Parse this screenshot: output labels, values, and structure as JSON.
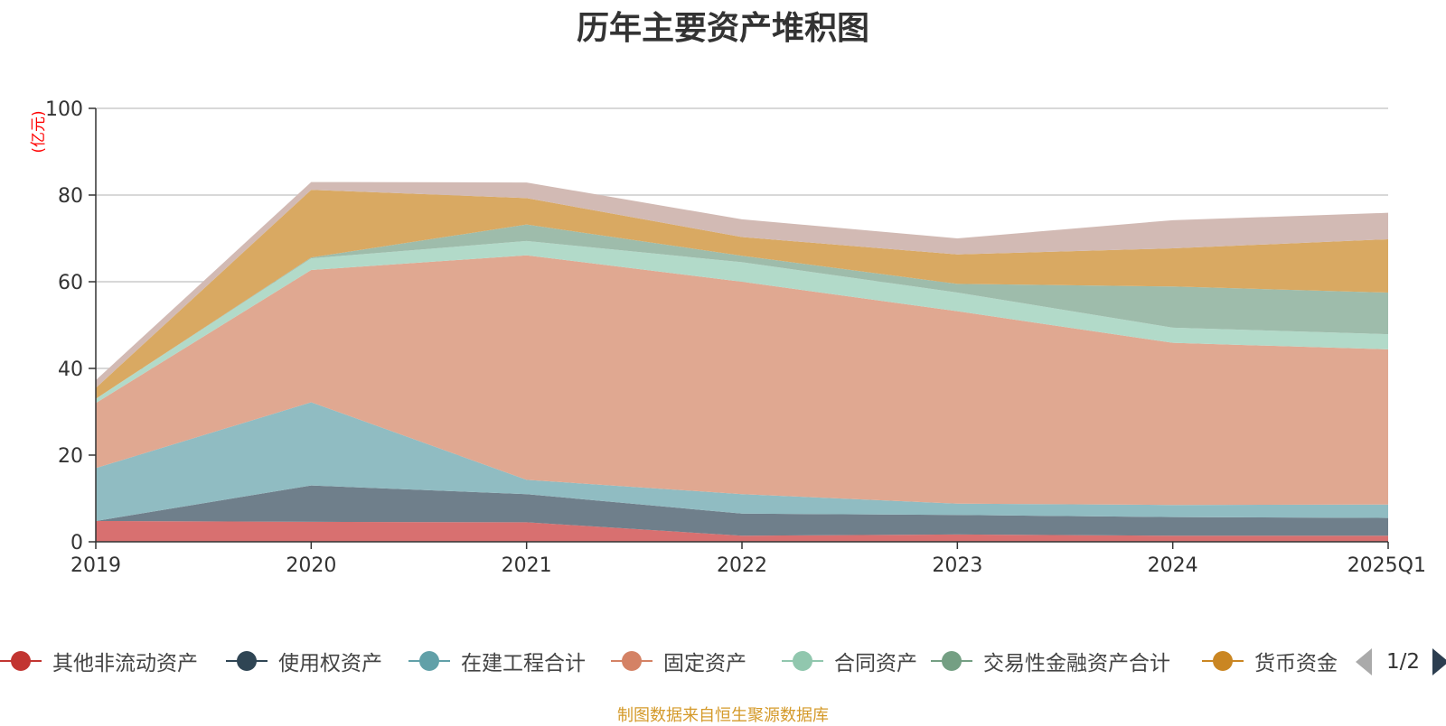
{
  "title": "历年主要资产堆积图",
  "source_note": "制图数据来自恒生聚源数据库",
  "pager": {
    "text": "1/2"
  },
  "chart_data": {
    "type": "area",
    "stacked": true,
    "title": "历年主要资产堆积图",
    "ylabel": "(亿元)",
    "ylim": [
      0,
      100
    ],
    "yticks": [
      0,
      20,
      40,
      60,
      80,
      100
    ],
    "grid": true,
    "legend_position": "bottom",
    "categories": [
      "2019",
      "2020",
      "2021",
      "2022",
      "2023",
      "2024",
      "2025Q1"
    ],
    "series": [
      {
        "name": "其他非流动资产",
        "color": "#c23531",
        "fill": "#d87070",
        "values": [
          4.8,
          4.6,
          4.5,
          1.4,
          1.7,
          1.4,
          1.4
        ]
      },
      {
        "name": "使用权资产",
        "color": "#2f4554",
        "fill": "#6f7f8b",
        "values": [
          0.0,
          8.4,
          6.5,
          5.1,
          4.5,
          4.3,
          4.1
        ]
      },
      {
        "name": "在建工程合计",
        "color": "#61a0a8",
        "fill": "#90bcc2",
        "values": [
          12.2,
          19.2,
          3.3,
          4.5,
          2.6,
          2.8,
          3.1
        ]
      },
      {
        "name": "固定资产",
        "color": "#d48265",
        "fill": "#e0a891",
        "values": [
          15.0,
          30.5,
          51.8,
          49.0,
          44.4,
          37.4,
          35.8
        ]
      },
      {
        "name": "合同资产",
        "color": "#91c7ae",
        "fill": "#b2dac9",
        "values": [
          1.0,
          2.7,
          3.3,
          4.5,
          4.3,
          3.5,
          3.5
        ]
      },
      {
        "name": "交易性金融资产合计",
        "color": "#749f83",
        "fill": "#9ebcab",
        "values": [
          0.0,
          0.2,
          3.8,
          1.5,
          2.0,
          9.5,
          9.6
        ]
      },
      {
        "name": "货币资金",
        "color": "#ca8622",
        "fill": "#d9a962",
        "values": [
          2.5,
          15.6,
          6.1,
          4.3,
          6.8,
          8.8,
          12.3
        ]
      },
      {
        "name": "",
        "color": "#bda29a",
        "fill": "#d2bab4",
        "values": [
          1.8,
          1.8,
          3.6,
          4.1,
          3.7,
          6.5,
          6.1
        ]
      }
    ]
  },
  "colors": {
    "axis": "#333333",
    "grid": "#cccccc",
    "unit_label": "#ff0000",
    "source": "#d49a2a"
  }
}
